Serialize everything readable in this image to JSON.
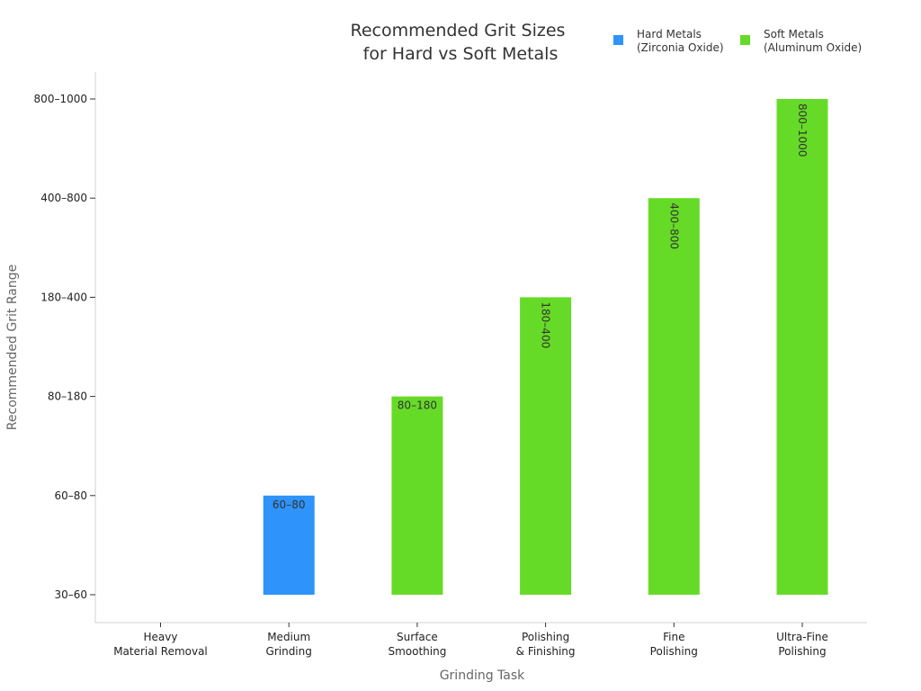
{
  "chart_data": {
    "type": "bar",
    "title": [
      "Recommended Grit Sizes",
      "for Hard vs Soft Metals"
    ],
    "xlabel": "Grinding Task",
    "ylabel": "Recommended Grit Range",
    "y_levels": [
      "30–60",
      "60–80",
      "80–180",
      "180–400",
      "400–800",
      "800–1000"
    ],
    "categories": [
      [
        "Heavy",
        "Material Removal"
      ],
      [
        "Medium",
        "Grinding"
      ],
      [
        "Surface",
        "Smoothing"
      ],
      [
        "Polishing",
        "& Finishing"
      ],
      [
        "Fine",
        "Polishing"
      ],
      [
        "Ultra-Fine",
        "Polishing"
      ]
    ],
    "series": [
      {
        "name": [
          "Hard Metals",
          "(Zirconia Oxide)"
        ],
        "color": "#2e93fa"
      },
      {
        "name": [
          "Soft Metals",
          "(Aluminum Oxide)"
        ],
        "color": "#66db27"
      }
    ],
    "bars": [
      {
        "category_index": 0,
        "series_index": 0,
        "value": "30–60",
        "label": ""
      },
      {
        "category_index": 1,
        "series_index": 0,
        "value": "60–80",
        "label": "60–80"
      },
      {
        "category_index": 2,
        "series_index": 1,
        "value": "80–180",
        "label": "80–180"
      },
      {
        "category_index": 3,
        "series_index": 1,
        "value": "180–400",
        "label": "180–400"
      },
      {
        "category_index": 4,
        "series_index": 1,
        "value": "400–800",
        "label": "400–800"
      },
      {
        "category_index": 5,
        "series_index": 1,
        "value": "800–1000",
        "label": "800–1000"
      }
    ],
    "legend_position": "top-right",
    "grid": false
  }
}
